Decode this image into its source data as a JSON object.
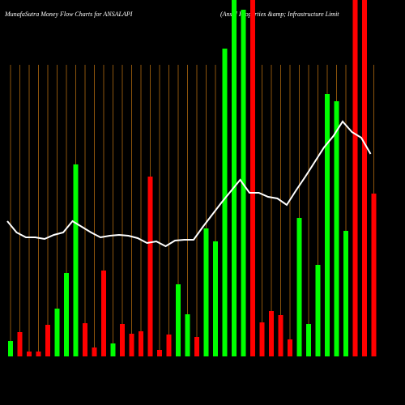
{
  "chart_data": {
    "type": "bar",
    "title": "MunafaSutra  Money Flow  Charts for ANSALAPI",
    "subtitle": "(Ansal Properties &amp; Infrastructure   Limit",
    "values": [
      19,
      30,
      6,
      6,
      39,
      59,
      103,
      237,
      41,
      11,
      106,
      16,
      40,
      28,
      31,
      222,
      8,
      27,
      89,
      52,
      24,
      158,
      142,
      380,
      440,
      428,
      440,
      42,
      56,
      51,
      21,
      171,
      40,
      113,
      324,
      315,
      155,
      440,
      440,
      201
    ],
    "colors": [
      "#00ff00",
      "#ff0000",
      "#ff0000",
      "#ff0000",
      "#ff0000",
      "#00ff00",
      "#00ff00",
      "#00ff00",
      "#ff0000",
      "#ff0000",
      "#ff0000",
      "#00ff00",
      "#ff0000",
      "#ff0000",
      "#ff0000",
      "#ff0000",
      "#ff0000",
      "#ff0000",
      "#00ff00",
      "#00ff00",
      "#ff0000",
      "#00ff00",
      "#00ff00",
      "#00ff00",
      "#00ff00",
      "#00ff00",
      "#ff0000",
      "#ff0000",
      "#ff0000",
      "#ff0000",
      "#ff0000",
      "#00ff00",
      "#00ff00",
      "#00ff00",
      "#00ff00",
      "#00ff00",
      "#00ff00",
      "#ff0000",
      "#ff0000",
      "#ff0000"
    ],
    "line": {
      "color": "#ffffff",
      "values": [
        167,
        153,
        147,
        147,
        145,
        150,
        153,
        167,
        160,
        153,
        147,
        149,
        150,
        149,
        146,
        140,
        142,
        136,
        143,
        144,
        144,
        160,
        175,
        190,
        204,
        218,
        202,
        202,
        197,
        195,
        187,
        205,
        222,
        240,
        258,
        272,
        290,
        277,
        270,
        250
      ]
    },
    "ylim": [
      0,
      440
    ],
    "grid_color": "#b06a10"
  }
}
